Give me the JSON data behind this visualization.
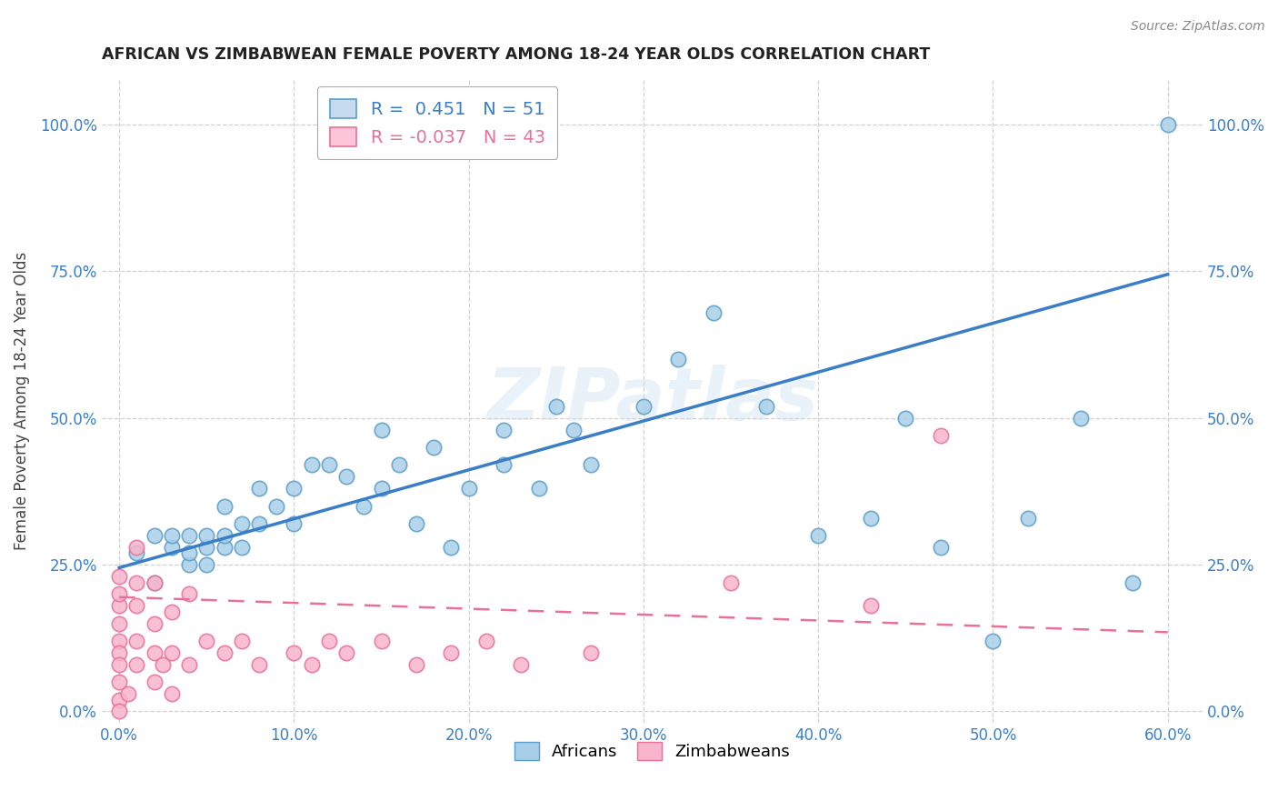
{
  "title": "AFRICAN VS ZIMBABWEAN FEMALE POVERTY AMONG 18-24 YEAR OLDS CORRELATION CHART",
  "source": "Source: ZipAtlas.com",
  "ylabel": "Female Poverty Among 18-24 Year Olds",
  "xlabel_vals": [
    0.0,
    0.1,
    0.2,
    0.3,
    0.4,
    0.5,
    0.6
  ],
  "xlabel_labels": [
    "0.0%",
    "10.0%",
    "20.0%",
    "30.0%",
    "40.0%",
    "50.0%",
    "60.0%"
  ],
  "ylabel_vals": [
    0.0,
    0.25,
    0.5,
    0.75,
    1.0
  ],
  "ylabel_labels": [
    "0.0%",
    "25.0%",
    "50.0%",
    "75.0%",
    "100.0%"
  ],
  "xlim": [
    -0.01,
    0.62
  ],
  "ylim": [
    -0.02,
    1.08
  ],
  "african_R": 0.451,
  "african_N": 51,
  "zimbabwean_R": -0.037,
  "zimbabwean_N": 43,
  "african_color": "#a8cfe8",
  "african_edge_color": "#5b9dc9",
  "zimbabwean_color": "#f8b4cb",
  "zimbabwean_edge_color": "#e8709a",
  "african_line_color": "#3a7ec8",
  "zimbabwean_line_color": "#e8709a",
  "watermark": "ZIPatlas",
  "legend_african_face": "#c6dbef",
  "legend_zimbabwean_face": "#fcc5d8",
  "africans_x": [
    0.01,
    0.02,
    0.02,
    0.03,
    0.03,
    0.04,
    0.04,
    0.04,
    0.05,
    0.05,
    0.05,
    0.06,
    0.06,
    0.06,
    0.07,
    0.07,
    0.08,
    0.08,
    0.09,
    0.1,
    0.1,
    0.11,
    0.12,
    0.13,
    0.14,
    0.15,
    0.15,
    0.16,
    0.17,
    0.18,
    0.19,
    0.2,
    0.22,
    0.22,
    0.24,
    0.25,
    0.26,
    0.27,
    0.3,
    0.32,
    0.34,
    0.37,
    0.4,
    0.43,
    0.45,
    0.47,
    0.5,
    0.52,
    0.55,
    0.58,
    0.6
  ],
  "africans_y": [
    0.27,
    0.3,
    0.22,
    0.28,
    0.3,
    0.25,
    0.3,
    0.27,
    0.28,
    0.3,
    0.25,
    0.28,
    0.35,
    0.3,
    0.28,
    0.32,
    0.32,
    0.38,
    0.35,
    0.38,
    0.32,
    0.42,
    0.42,
    0.4,
    0.35,
    0.38,
    0.48,
    0.42,
    0.32,
    0.45,
    0.28,
    0.38,
    0.42,
    0.48,
    0.38,
    0.52,
    0.48,
    0.42,
    0.52,
    0.6,
    0.68,
    0.52,
    0.3,
    0.33,
    0.5,
    0.28,
    0.12,
    0.33,
    0.5,
    0.22,
    1.0
  ],
  "zimbabweans_x": [
    0.0,
    0.0,
    0.0,
    0.0,
    0.0,
    0.0,
    0.0,
    0.0,
    0.0,
    0.0,
    0.005,
    0.01,
    0.01,
    0.01,
    0.01,
    0.01,
    0.02,
    0.02,
    0.02,
    0.02,
    0.025,
    0.03,
    0.03,
    0.03,
    0.04,
    0.04,
    0.05,
    0.06,
    0.07,
    0.08,
    0.1,
    0.11,
    0.12,
    0.13,
    0.15,
    0.17,
    0.19,
    0.21,
    0.23,
    0.27,
    0.35,
    0.43,
    0.47
  ],
  "zimbabweans_y": [
    0.18,
    0.15,
    0.12,
    0.1,
    0.08,
    0.05,
    0.02,
    0.0,
    0.2,
    0.23,
    0.03,
    0.08,
    0.12,
    0.18,
    0.22,
    0.28,
    0.05,
    0.1,
    0.15,
    0.22,
    0.08,
    0.03,
    0.1,
    0.17,
    0.08,
    0.2,
    0.12,
    0.1,
    0.12,
    0.08,
    0.1,
    0.08,
    0.12,
    0.1,
    0.12,
    0.08,
    0.1,
    0.12,
    0.08,
    0.1,
    0.22,
    0.18,
    0.47
  ],
  "african_line_x0": 0.0,
  "african_line_y0": 0.245,
  "african_line_x1": 0.6,
  "african_line_y1": 0.745,
  "zimbabwean_line_x0": 0.0,
  "zimbabwean_line_y0": 0.195,
  "zimbabwean_line_x1": 0.6,
  "zimbabwean_line_y1": 0.135
}
